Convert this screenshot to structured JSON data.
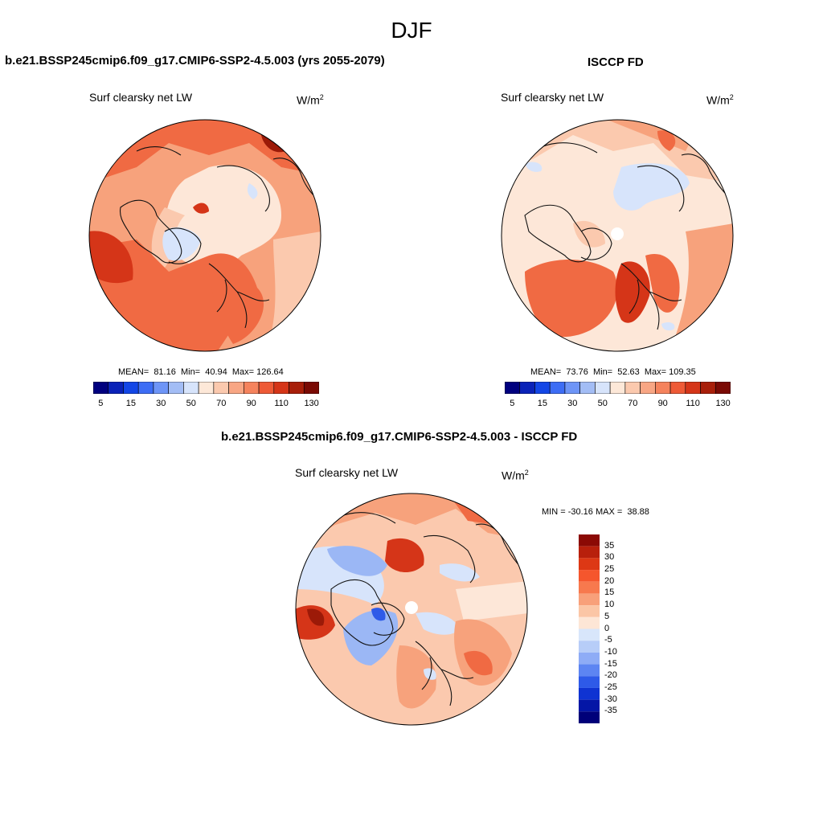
{
  "season": "DJF",
  "panels": {
    "model": {
      "title": "b.e21.BSSP245cmip6.f09_g17.CMIP6-SSP2-4.5.003 (yrs 2055-2079)",
      "variable": "Surf clearsky net LW",
      "units_base": "W/m",
      "units_exp": "2",
      "stats": "MEAN=  81.16  Min=  40.94  Max= 126.64",
      "colorbar": {
        "colors": [
          "#00007f",
          "#0a22b8",
          "#1346e6",
          "#3d6df5",
          "#6e95f7",
          "#a3bdf5",
          "#d7e4fb",
          "#fde8d8",
          "#fbc9ae",
          "#f8a684",
          "#f5835d",
          "#ee5a36",
          "#d53518",
          "#a81f0a",
          "#7a0a04"
        ],
        "tick_labels": [
          "5",
          "15",
          "30",
          "50",
          "70",
          "90",
          "110",
          "130"
        ]
      }
    },
    "obs": {
      "title": "ISCCP FD",
      "variable": "Surf clearsky net LW",
      "units_base": "W/m",
      "units_exp": "2",
      "stats": "MEAN=  73.76  Min=  52.63  Max= 109.35",
      "colorbar": {
        "colors": [
          "#00007f",
          "#0a22b8",
          "#1346e6",
          "#3d6df5",
          "#6e95f7",
          "#a3bdf5",
          "#d7e4fb",
          "#fde8d8",
          "#fbc9ae",
          "#f8a684",
          "#f5835d",
          "#ee5a36",
          "#d53518",
          "#a81f0a",
          "#7a0a04"
        ],
        "tick_labels": [
          "5",
          "15",
          "30",
          "50",
          "70",
          "90",
          "110",
          "130"
        ]
      }
    },
    "diff": {
      "title": "b.e21.BSSP245cmip6.f09_g17.CMIP6-SSP2-4.5.003 - ISCCP FD",
      "variable": "Surf clearsky net LW",
      "units_base": "W/m",
      "units_exp": "2",
      "stats": "MIN = -30.16 MAX =  38.88",
      "colorbar": {
        "colors": [
          "#8b0a05",
          "#b8200c",
          "#dd3815",
          "#f5562d",
          "#f7794e",
          "#f8a07a",
          "#fbc6a6",
          "#fde6d6",
          "#d8e6fb",
          "#b7cdf8",
          "#8eacf6",
          "#5d85f2",
          "#2e5ae8",
          "#0f33d2",
          "#0416a6",
          "#000079"
        ],
        "tick_labels": [
          "35",
          "30",
          "25",
          "20",
          "15",
          "10",
          "5",
          "0",
          "-5",
          "-10",
          "-15",
          "-20",
          "-25",
          "-30",
          "-35"
        ]
      }
    }
  },
  "map_colors": {
    "base": "#f7a27c",
    "light": "#fde7d8",
    "lighter": "#fbc9ae",
    "strong": "#f06a43",
    "deep": "#d53518",
    "darkred": "#9c1a08",
    "pale_blue": "#d7e4fb",
    "blue": "#9bb7f5",
    "darkblue": "#2e5ae8",
    "coast": "#111111"
  }
}
